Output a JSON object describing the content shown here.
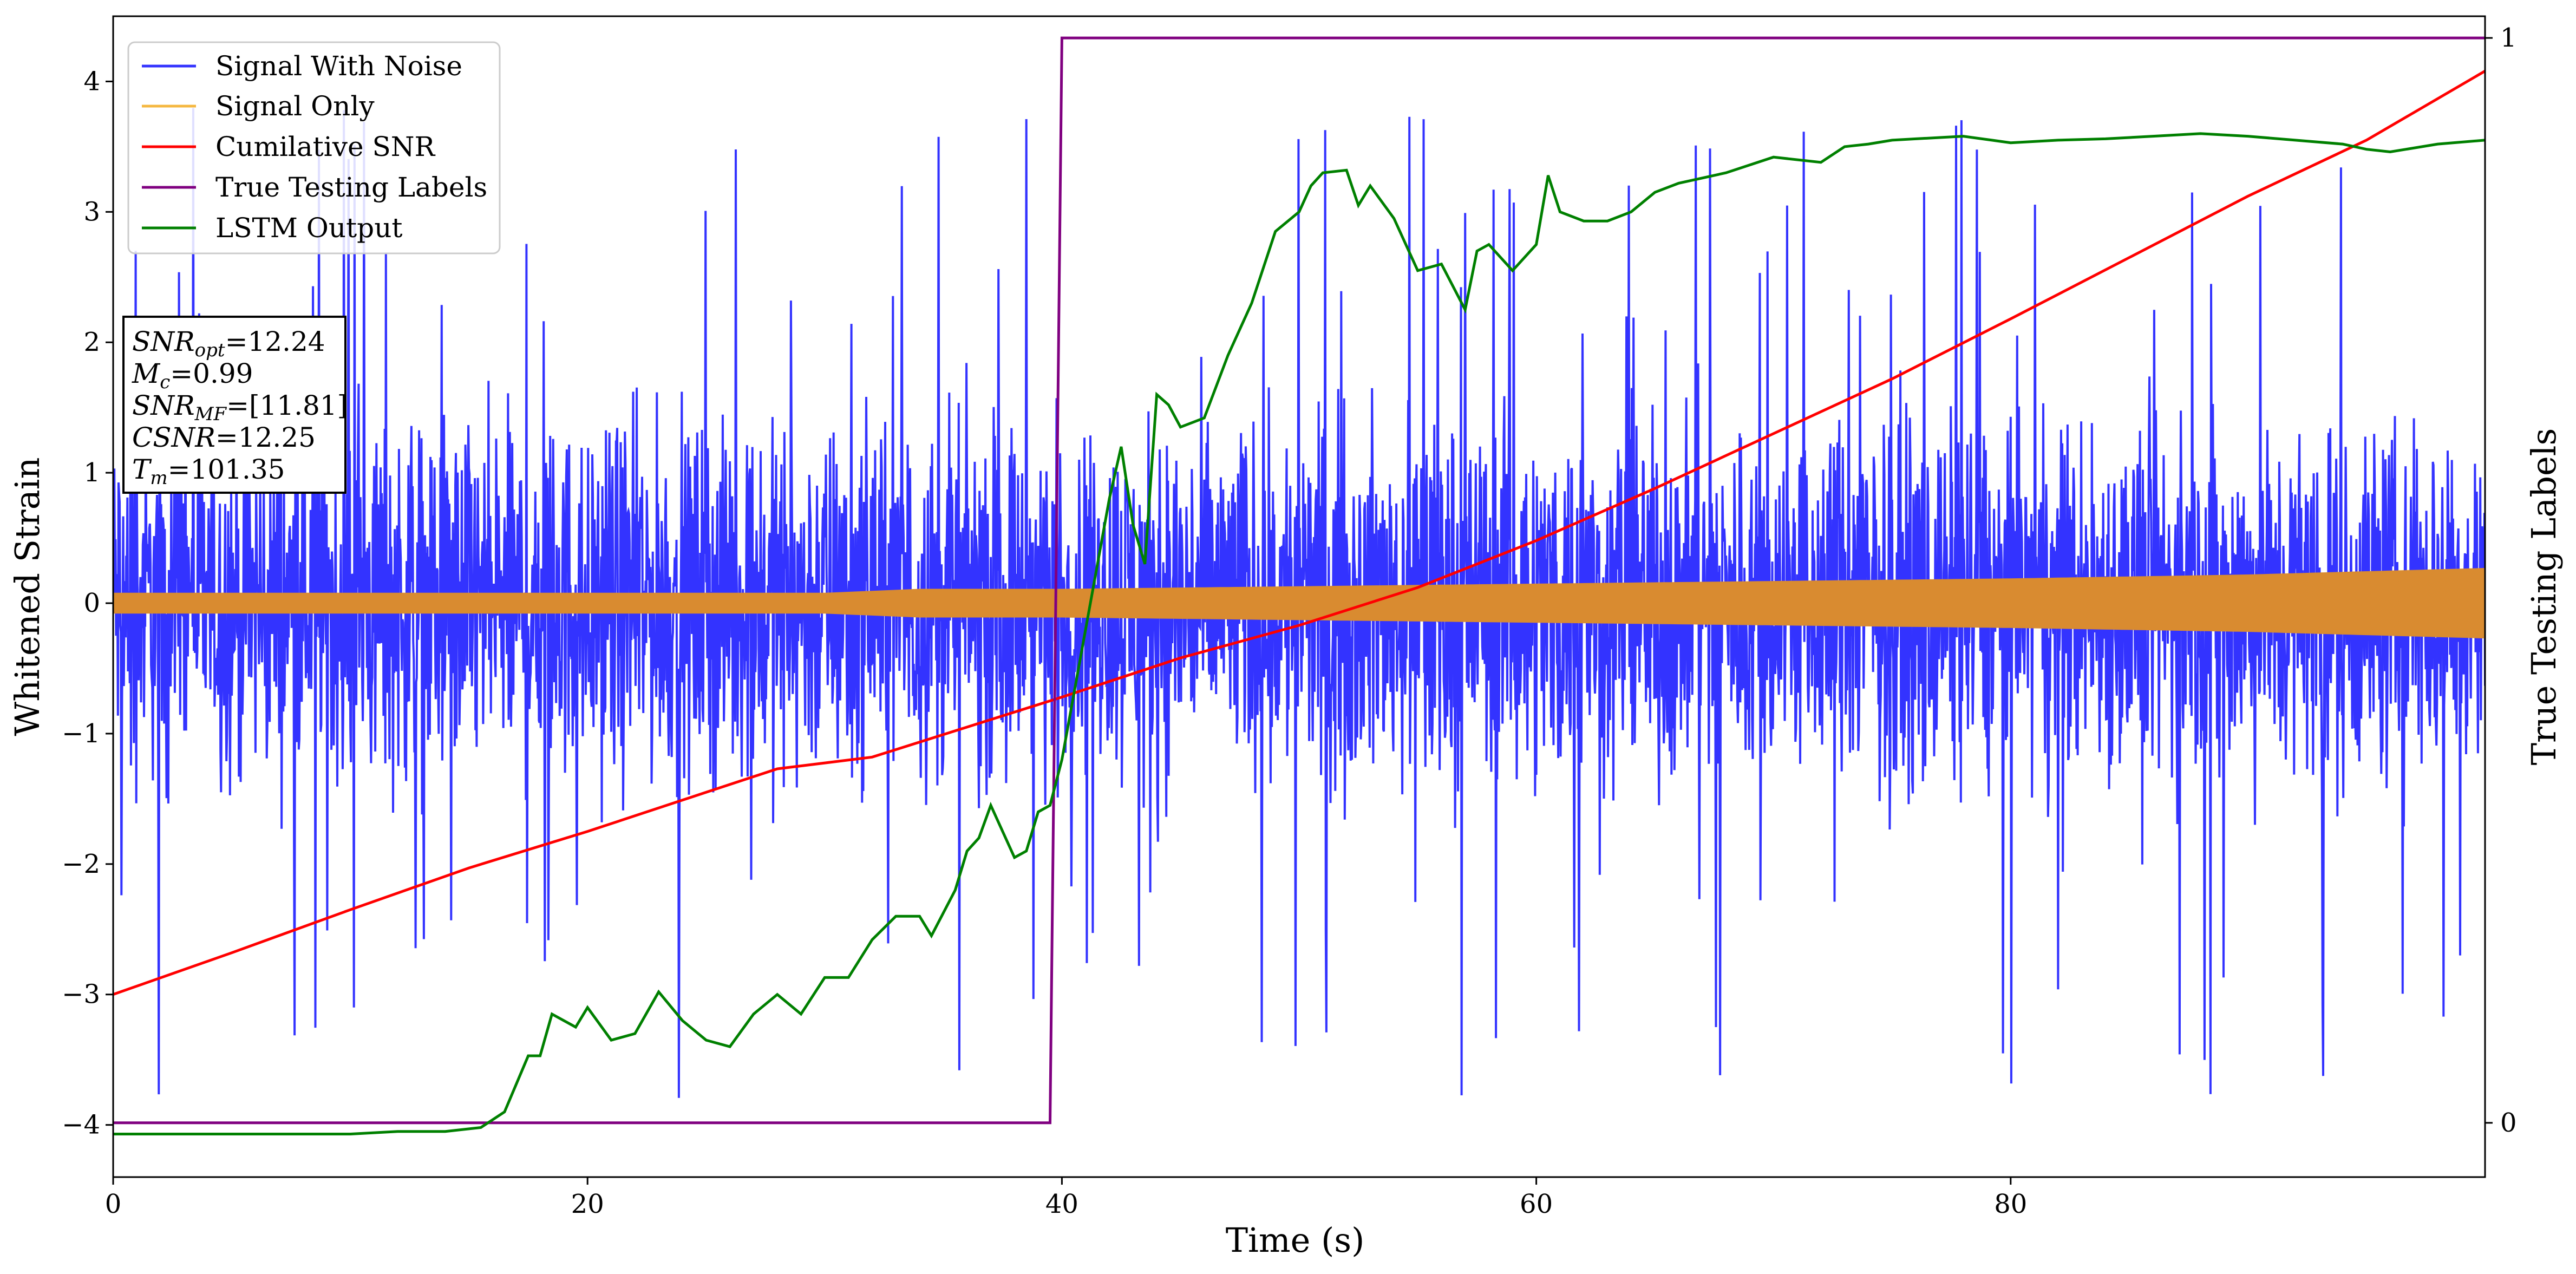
{
  "chart_data": {
    "type": "line",
    "title": "",
    "xlabel": "Time (s)",
    "ylabel": "Whitened Strain",
    "y2label": "True Testing Labels",
    "xlim": [
      0,
      100
    ],
    "ylim": [
      -4.4,
      4.5
    ],
    "y2lim": [
      -0.05,
      1.02
    ],
    "xticks": [
      0,
      20,
      40,
      60,
      80
    ],
    "yticks": [
      -4,
      -3,
      -2,
      -1,
      0,
      1,
      2,
      3,
      4
    ],
    "y2ticks": [
      0,
      1
    ],
    "grid": false,
    "legend_position": "top-left",
    "series": [
      {
        "name": "Signal With Noise",
        "color": "#3333ff",
        "kind": "noise",
        "description": "dense noisy strain trace, typical amplitude about ±2, spikes to about ±3.8",
        "typical_amplitude": 2.0,
        "peak_amplitude": 3.8
      },
      {
        "name": "Signal Only",
        "color": "#f5b841",
        "kind": "envelope",
        "description": "oscillating chirp signal, envelope grows with time",
        "x": [
          0,
          20,
          30,
          34,
          40,
          50,
          60,
          70,
          80,
          90,
          100
        ],
        "amplitude": [
          0.08,
          0.08,
          0.08,
          0.11,
          0.11,
          0.13,
          0.15,
          0.17,
          0.19,
          0.22,
          0.27
        ]
      },
      {
        "name": "Cumilative SNR",
        "color": "#ff0000",
        "axis": "left",
        "x": [
          0,
          5,
          10,
          15,
          20,
          25,
          28,
          32,
          36,
          40,
          45,
          50,
          55,
          60,
          65,
          70,
          75,
          80,
          85,
          90,
          95,
          100
        ],
        "y": [
          -3.0,
          -2.68,
          -2.35,
          -2.03,
          -1.75,
          -1.45,
          -1.27,
          -1.18,
          -0.95,
          -0.72,
          -0.42,
          -0.17,
          0.12,
          0.48,
          0.88,
          1.3,
          1.72,
          2.18,
          2.65,
          3.12,
          3.55,
          4.08
        ]
      },
      {
        "name": "True Testing Labels",
        "color": "#800080",
        "axis": "right",
        "x": [
          0,
          39.5,
          40.0,
          100
        ],
        "y": [
          0,
          0,
          1,
          1
        ]
      },
      {
        "name": "LSTM Output",
        "color": "#008000",
        "axis": "left",
        "x": [
          0,
          5,
          10,
          12,
          14,
          15.5,
          16.5,
          17.5,
          18,
          18.5,
          19.5,
          20,
          21,
          22,
          23,
          24,
          25,
          26,
          27,
          28,
          29,
          30,
          31,
          32,
          33,
          34,
          34.5,
          35.5,
          36,
          36.5,
          37,
          38,
          38.5,
          39,
          39.5,
          40,
          40.5,
          41,
          41.5,
          42,
          42.5,
          43,
          43.5,
          44,
          44.5,
          45,
          46,
          47,
          48,
          49,
          50,
          50.5,
          51,
          52,
          52.5,
          53,
          54,
          55,
          56,
          57,
          57.5,
          58,
          59,
          60,
          60.5,
          61,
          62,
          63,
          64,
          65,
          66,
          68,
          70,
          72,
          73,
          74,
          75,
          76,
          78,
          80,
          82,
          84,
          86,
          88,
          90,
          92,
          94,
          95,
          96,
          98,
          100
        ],
        "y": [
          -4.07,
          -4.07,
          -4.07,
          -4.05,
          -4.05,
          -4.02,
          -3.9,
          -3.47,
          -3.47,
          -3.15,
          -3.25,
          -3.1,
          -3.35,
          -3.3,
          -2.98,
          -3.2,
          -3.35,
          -3.4,
          -3.15,
          -3.0,
          -3.15,
          -2.87,
          -2.87,
          -2.58,
          -2.4,
          -2.4,
          -2.55,
          -2.2,
          -1.9,
          -1.8,
          -1.55,
          -1.95,
          -1.9,
          -1.6,
          -1.55,
          -1.2,
          -0.7,
          -0.2,
          0.3,
          0.8,
          1.2,
          0.6,
          0.3,
          1.6,
          1.52,
          1.35,
          1.42,
          1.9,
          2.3,
          2.85,
          3.0,
          3.2,
          3.3,
          3.32,
          3.05,
          3.2,
          2.95,
          2.55,
          2.6,
          2.25,
          2.7,
          2.75,
          2.55,
          2.75,
          3.28,
          3.0,
          2.93,
          2.93,
          3.0,
          3.15,
          3.22,
          3.3,
          3.42,
          3.38,
          3.5,
          3.52,
          3.55,
          3.56,
          3.58,
          3.53,
          3.55,
          3.56,
          3.58,
          3.6,
          3.58,
          3.55,
          3.52,
          3.48,
          3.46,
          3.52,
          3.55
        ]
      }
    ],
    "info_box": [
      {
        "main": "SNR",
        "sub": "opt",
        "value": "=12.24"
      },
      {
        "main": "M",
        "sub": "c",
        "value": "=0.99"
      },
      {
        "main": "SNR",
        "sub": "MF",
        "value": "=[11.81]"
      },
      {
        "main": "CSNR",
        "sub": "",
        "value": "=12.25"
      },
      {
        "main": "T",
        "sub": "m",
        "value": "=101.35"
      }
    ]
  }
}
